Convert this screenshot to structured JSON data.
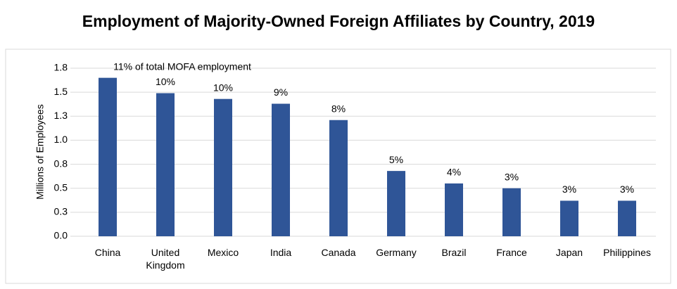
{
  "chart_data": {
    "type": "bar",
    "title": "Employment of Majority-Owned Foreign Affiliates by Country, 2019",
    "y_label": "Millions of Employees",
    "categories": [
      "China",
      "United Kingdom",
      "Mexico",
      "India",
      "Canada",
      "Germany",
      "Brazil",
      "France",
      "Japan",
      "Philippines"
    ],
    "values": [
      1.65,
      1.49,
      1.43,
      1.38,
      1.21,
      0.68,
      0.55,
      0.5,
      0.37,
      0.37
    ],
    "share_labels": [
      "11% of total MOFA employment",
      "10%",
      "10%",
      "9%",
      "8%",
      "5%",
      "4%",
      "3%",
      "3%",
      "3%"
    ],
    "color": "#2f5597",
    "ylim": [
      0,
      1.75
    ],
    "yticks": [
      {
        "value": 0,
        "label": "0.0"
      },
      {
        "value": 0.25,
        "label": "0.3"
      },
      0.5,
      {
        "value": 0.75,
        "label": "0.8"
      },
      {
        "value": 1,
        "label": "1.0"
      },
      {
        "value": 1.25,
        "label": "1.3"
      },
      1.5,
      {
        "value": 1.75,
        "label": "1.8"
      }
    ],
    "grid": true
  }
}
